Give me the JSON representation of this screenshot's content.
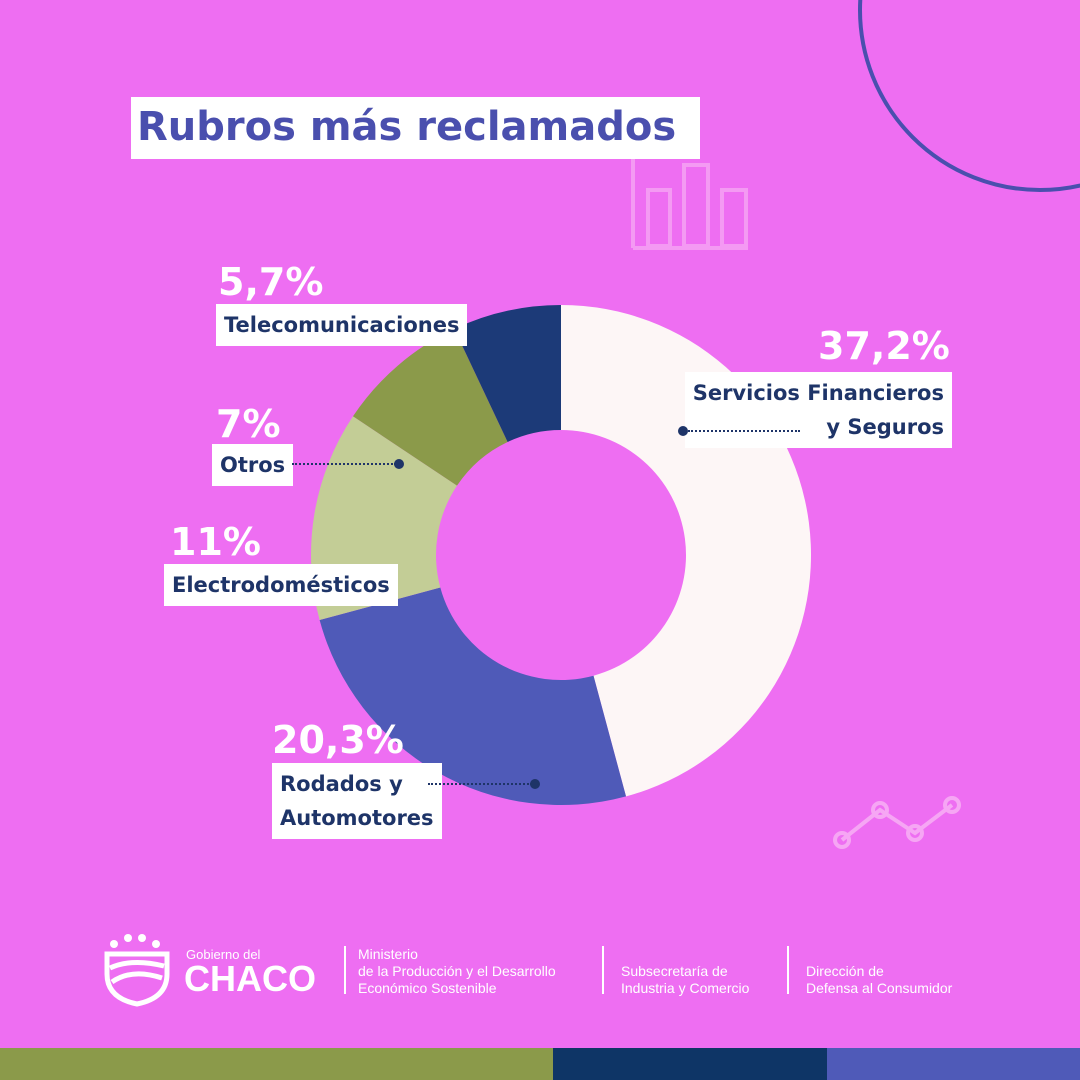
{
  "chart_data": {
    "type": "pie",
    "title": "Rubros más reclamados",
    "donut": true,
    "slices": [
      {
        "label": "Servicios Financieros y Seguros",
        "label_lines": [
          "Servicios Financieros",
          "y Seguros"
        ],
        "value": 37.2,
        "value_label": "37,2%",
        "color": "#fdf6f6"
      },
      {
        "label": "Rodados y Automotores",
        "label_lines": [
          "Rodados y",
          "Automotores"
        ],
        "value": 20.3,
        "value_label": "20,3%",
        "color": "#4f5ab8"
      },
      {
        "label": "Electrodomésticos",
        "label_lines": [
          "Electrodomésticos"
        ],
        "value": 11,
        "value_label": "11%",
        "color": "#c3cd96"
      },
      {
        "label": "Otros",
        "label_lines": [
          "Otros"
        ],
        "value": 7,
        "value_label": "7%",
        "color": "#8b9a4a"
      },
      {
        "label": "Telecomunicaciones",
        "label_lines": [
          "Telecomunicaciones"
        ],
        "value": 5.7,
        "value_label": "5,7%",
        "color": "#1c3a78"
      }
    ]
  },
  "colors": {
    "background": "#ee6ef2",
    "title": "#4a4fae",
    "label_text": "#1e3468"
  },
  "footer": {
    "gov_small": "Gobierno del",
    "gov_big": "CHACO",
    "ministry": [
      "Ministerio",
      "de la Producción y el Desarrollo",
      "Económico Sostenible"
    ],
    "subsecretaria": [
      "Subsecretaría de",
      "Industria y Comercio"
    ],
    "direccion": [
      "Dirección de",
      "Defensa al Consumidor"
    ]
  },
  "decorations": [
    "bar-chart-icon",
    "line-chart-icon",
    "circle-arc"
  ]
}
